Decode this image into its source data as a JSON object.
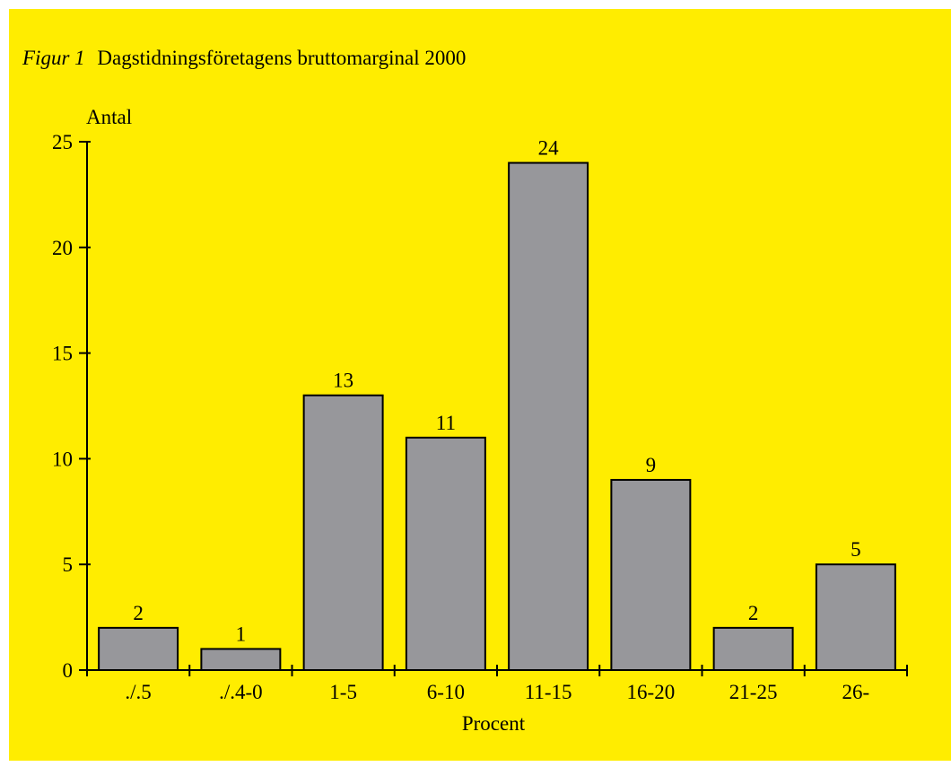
{
  "figure": {
    "label": "Figur 1",
    "title": "Dagstidningsföretagens bruttomarginal 2000"
  },
  "colors": {
    "background": "#ffed00",
    "bar_fill": "#97979b",
    "bar_stroke": "#000000"
  },
  "chart_data": {
    "type": "bar",
    "title": "Dagstidningsföretagens bruttomarginal 2000",
    "xlabel": "Procent",
    "ylabel": "Antal",
    "categories": [
      "./.5",
      "./.4-0",
      "1-5",
      "6-10",
      "11-15",
      "16-20",
      "21-25",
      "26-"
    ],
    "values": [
      2,
      1,
      13,
      11,
      24,
      9,
      2,
      5
    ],
    "ylim": [
      0,
      25
    ],
    "yticks": [
      0,
      5,
      10,
      15,
      20,
      25
    ],
    "grid": false,
    "data_labels": true
  }
}
